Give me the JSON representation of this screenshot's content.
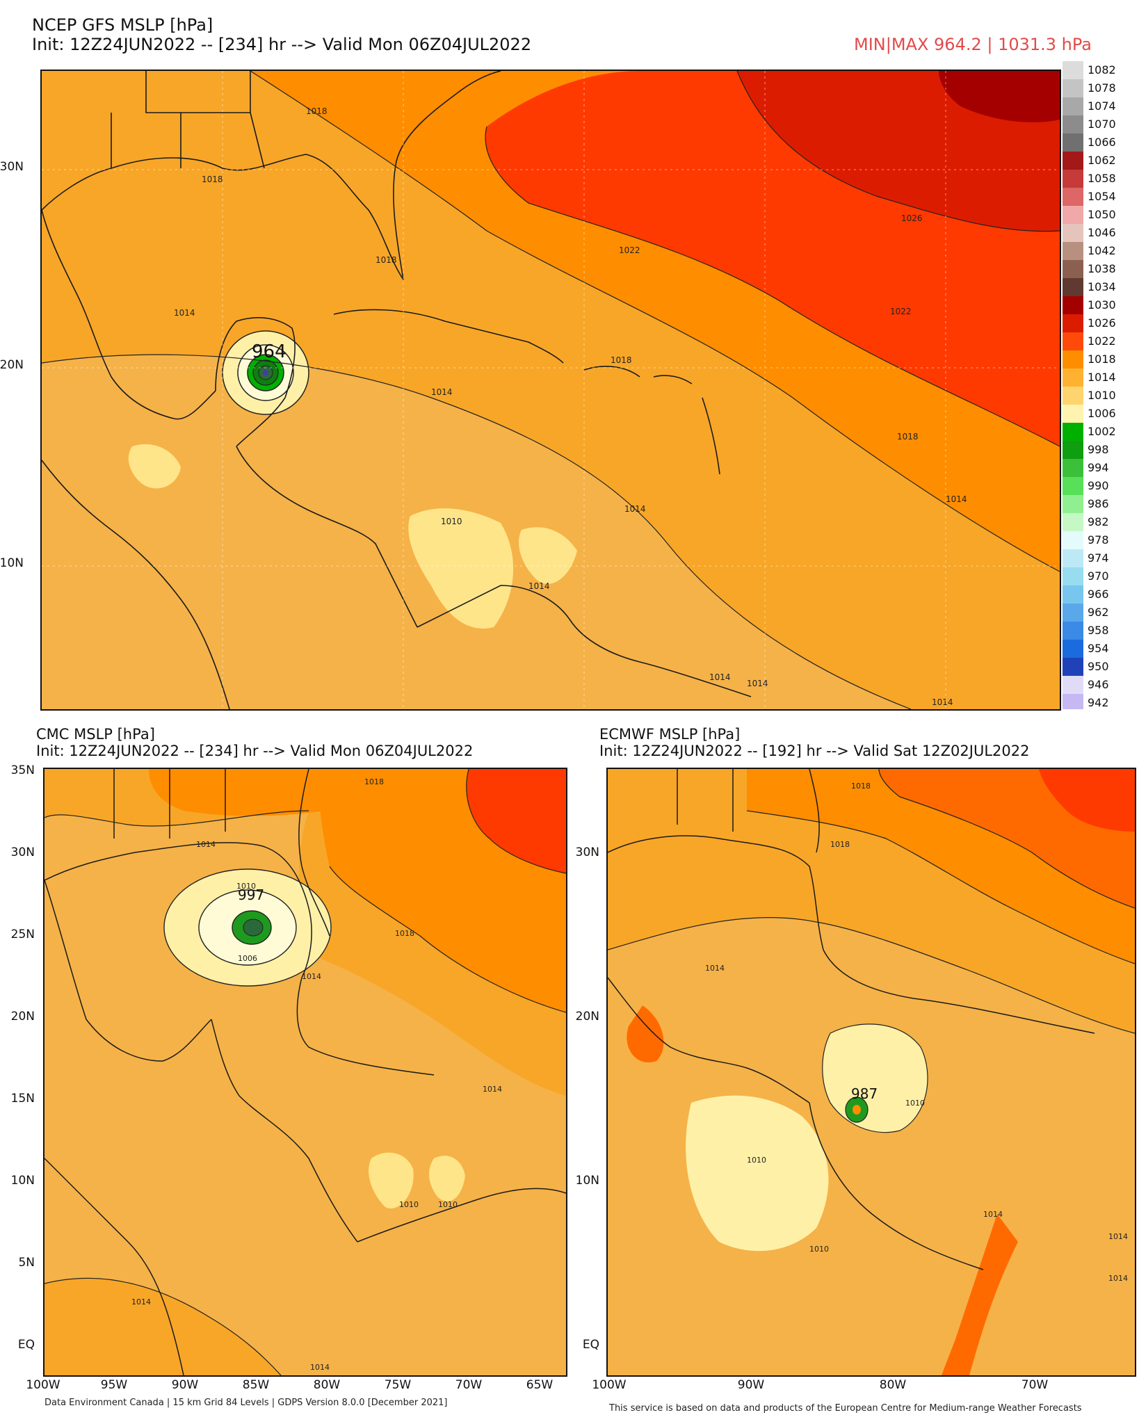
{
  "gfs": {
    "title": "NCEP GFS MSLP [hPa]",
    "init": "Init: 12Z24JUN2022 -- [234] hr --> Valid Mon 06Z04JUL2022",
    "minmax": "MIN|MAX 964.2 | 1031.3 hPa",
    "lat_labels": [
      "30N",
      "20N",
      "10N"
    ],
    "center_value": "964",
    "contour_labels": [
      "1018",
      "1018",
      "1018",
      "1018",
      "1022",
      "1022",
      "1026",
      "1014",
      "1014",
      "1014",
      "1014",
      "1010",
      "1018",
      "1014",
      "1014",
      "1014",
      "1014"
    ]
  },
  "colorbar": {
    "levels": [
      "1082",
      "1078",
      "1074",
      "1070",
      "1066",
      "1062",
      "1058",
      "1054",
      "1050",
      "1046",
      "1042",
      "1038",
      "1034",
      "1030",
      "1026",
      "1022",
      "1018",
      "1014",
      "1010",
      "1006",
      "1002",
      "998",
      "994",
      "990",
      "986",
      "982",
      "978",
      "974",
      "970",
      "966",
      "962",
      "958",
      "954",
      "950",
      "946",
      "942"
    ],
    "colors": [
      "#dcdcdc",
      "#c4c4c4",
      "#a8a8a8",
      "#8c8c8c",
      "#707070",
      "#a31818",
      "#c73a3a",
      "#dd6666",
      "#f0a8a8",
      "#e4c4bb",
      "#b89080",
      "#8c6050",
      "#603a30",
      "#a40000",
      "#dc1c00",
      "#ff4a0a",
      "#ff8d00",
      "#ffb231",
      "#ffd36e",
      "#fff3b0",
      "#00b000",
      "#0f9e0f",
      "#3cc03c",
      "#58e058",
      "#90f090",
      "#c6f8c6",
      "#e4fbfb",
      "#bde9f7",
      "#98dcf0",
      "#78c6ee",
      "#5aa8ea",
      "#3a8ae6",
      "#1a6bde",
      "#2042b8",
      "#e0dcf8",
      "#c6b8f2",
      "#9a88ea"
    ]
  },
  "cmc": {
    "title": "CMC MSLP [hPa]",
    "init": "Init: 12Z24JUN2022 -- [234] hr --> Valid Mon 06Z04JUL2022",
    "lat_labels": [
      "35N",
      "30N",
      "25N",
      "20N",
      "15N",
      "10N",
      "5N",
      "EQ"
    ],
    "lon_labels": [
      "100W",
      "95W",
      "90W",
      "85W",
      "80W",
      "75W",
      "70W",
      "65W"
    ],
    "center_value": "997",
    "contour_labels": [
      "1018",
      "1014",
      "1010",
      "1006",
      "1018",
      "1014",
      "1014",
      "1010",
      "1010",
      "1014",
      "1014"
    ],
    "credit": "Data Environment Canada | 15 km Grid 84 Levels | GDPS Version 8.0.0 [December 2021]"
  },
  "ecmwf": {
    "title": "ECMWF MSLP [hPa]",
    "init": "Init: 12Z24JUN2022 -- [192] hr --> Valid Sat 12Z02JUL2022",
    "lat_labels": [
      "30N",
      "20N",
      "10N",
      "EQ"
    ],
    "lon_labels": [
      "100W",
      "90W",
      "80W",
      "70W"
    ],
    "center_value": "987",
    "contour_labels": [
      "1018",
      "1018",
      "1014",
      "1010",
      "1010",
      "1010",
      "1014",
      "1014",
      "1014"
    ],
    "credit": "This service is based on data and products of the European Centre for Medium-range Weather Forecasts"
  },
  "colors": {
    "p1030": "#a40000",
    "p1026": "#dc1c00",
    "p1022": "#ff3a00",
    "p1018": "#ff8d00",
    "p1014": "#f8a628",
    "p1010": "#f5c060",
    "p1006": "#fff0a8",
    "p1002": "#fffbd6",
    "low_green": "#1e9a1e",
    "minmax_text": "#e34a4a"
  }
}
